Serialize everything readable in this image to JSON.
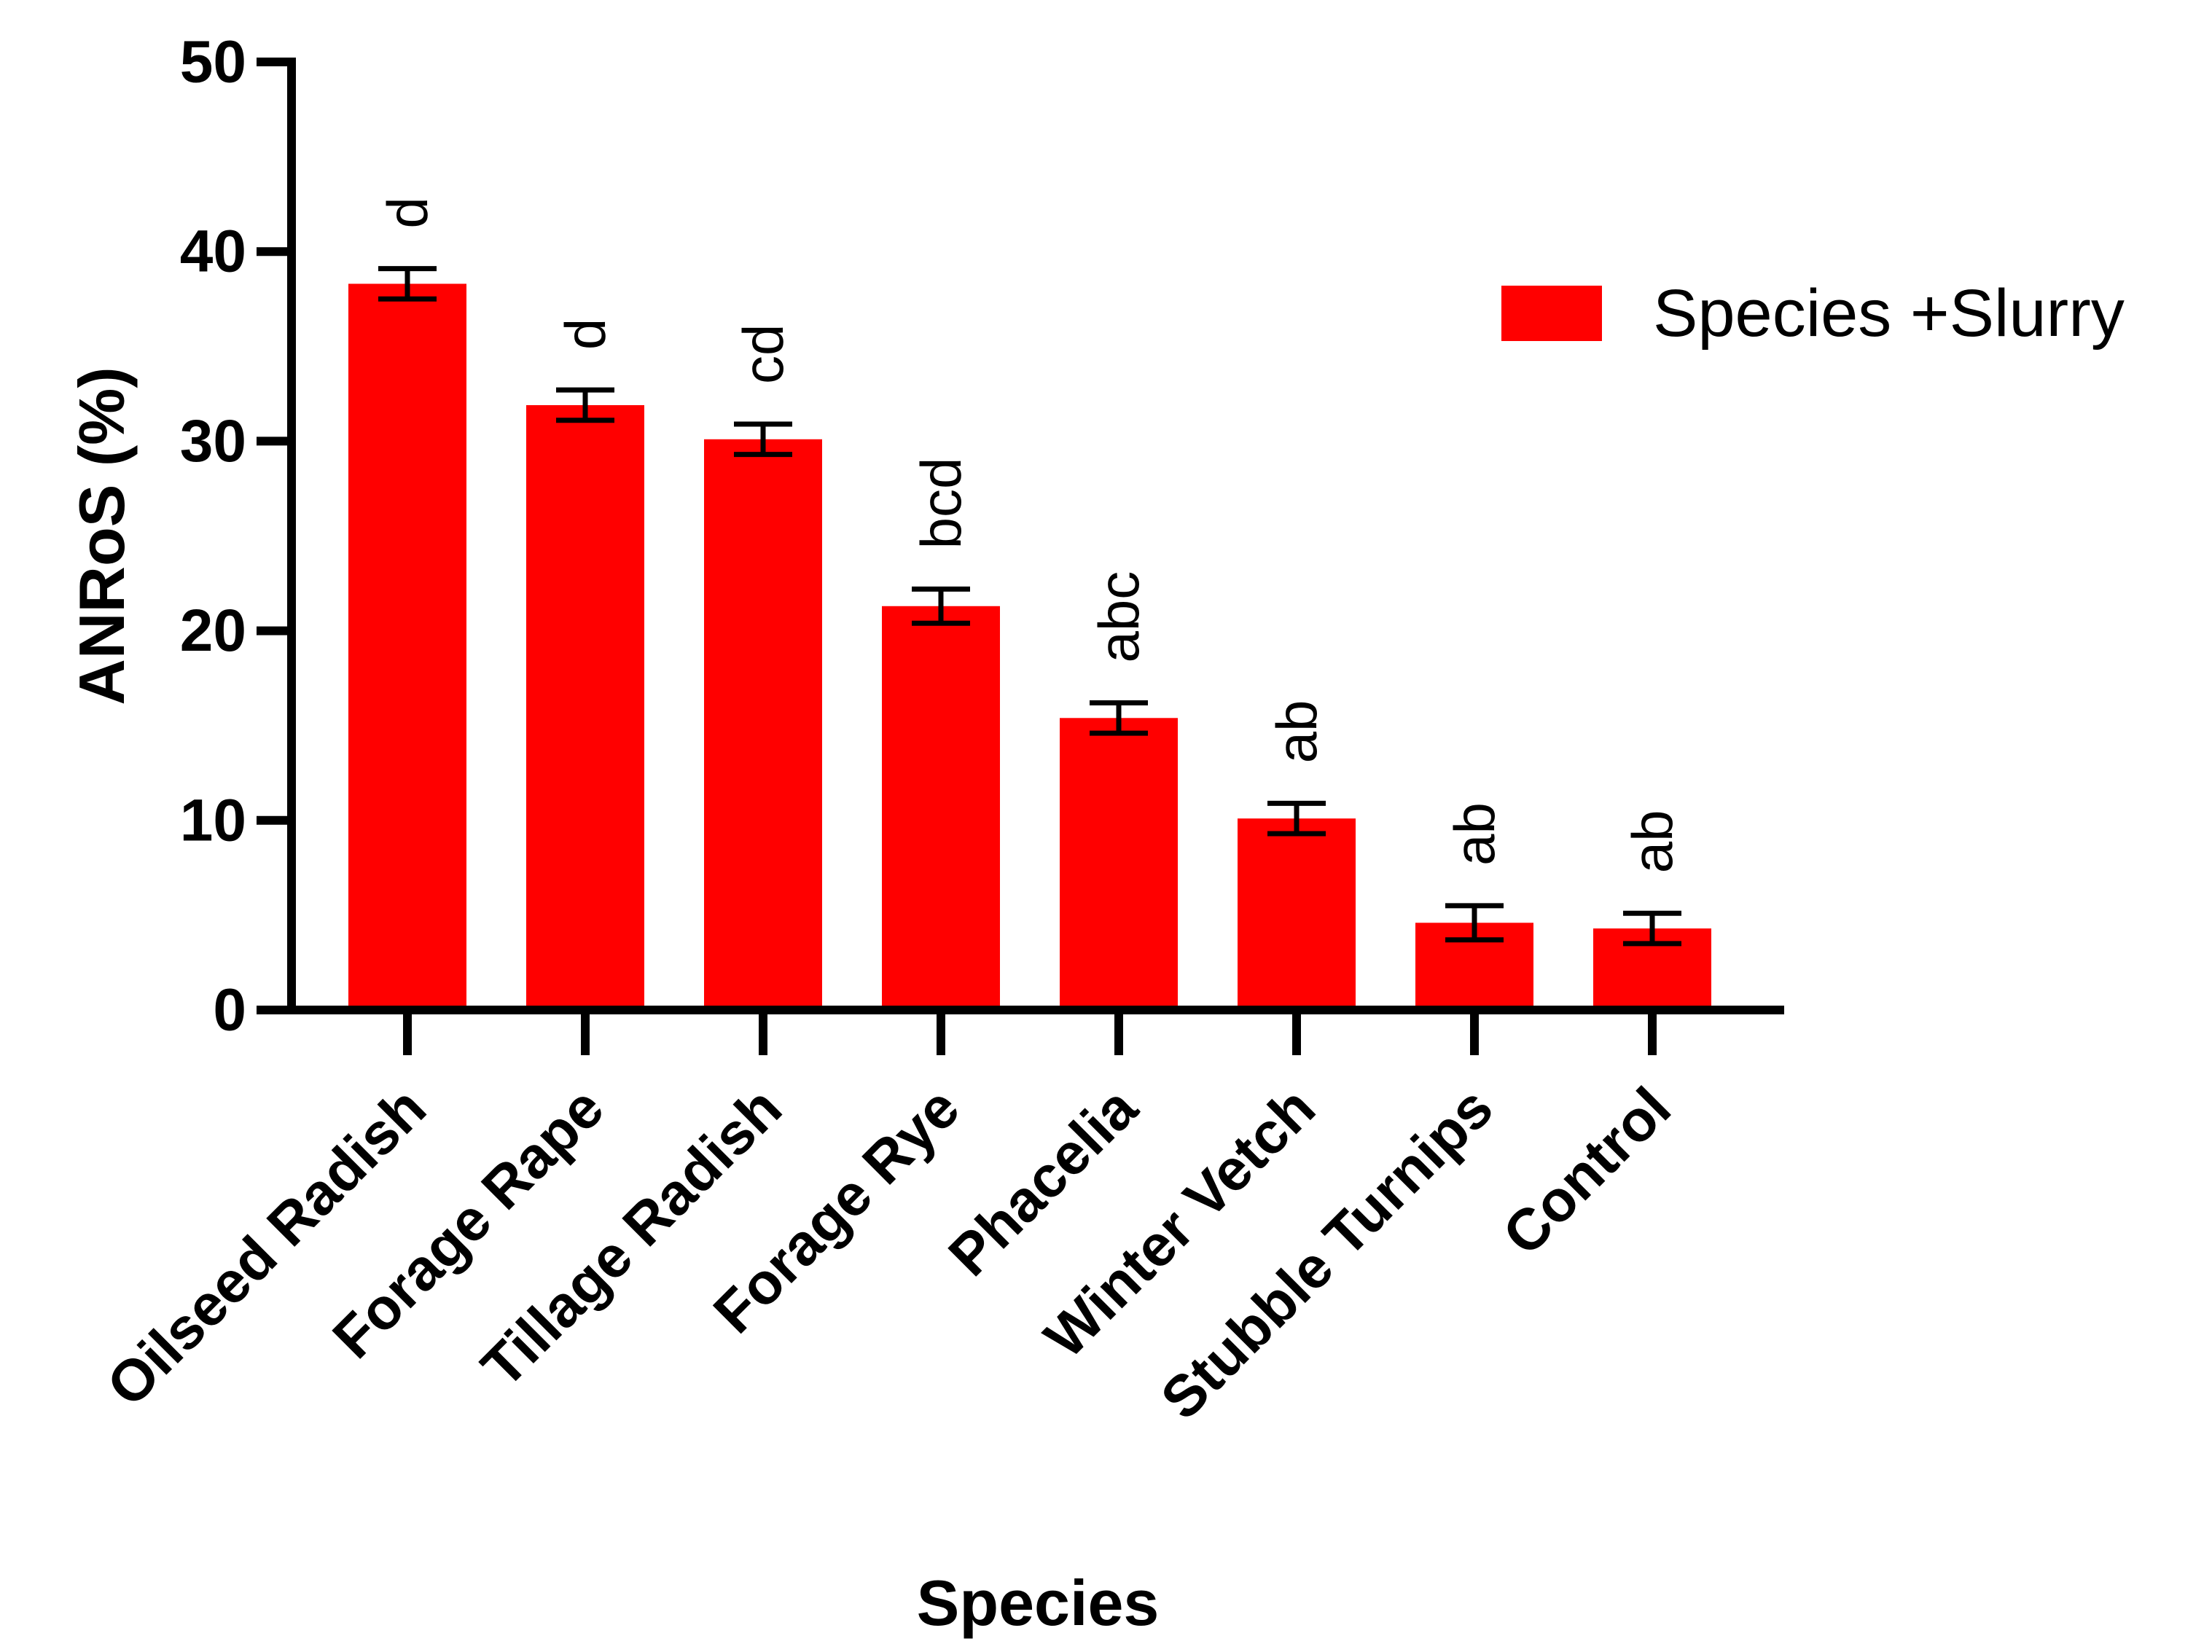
{
  "chart_data": {
    "type": "bar",
    "title": "",
    "xlabel": "Species",
    "ylabel": "ANRoS (%)",
    "ylim": [
      0,
      50
    ],
    "yticks": [
      0,
      10,
      20,
      30,
      40,
      50
    ],
    "categories": [
      "Oilseed Radish",
      "Forage Rape",
      "Tillage Radish",
      "Forage Rye",
      "Phacelia",
      "Winter Vetch",
      "Stubble Turnips",
      "Control"
    ],
    "series": [
      {
        "name": "Species +Slurry",
        "color": "#ff0000",
        "values": [
          38.3,
          31.9,
          30.1,
          21.3,
          15.4,
          10.1,
          4.6,
          4.3
        ],
        "errors": [
          0.8,
          0.8,
          0.8,
          0.9,
          0.8,
          0.8,
          0.9,
          0.8
        ]
      }
    ],
    "significance_letters": [
      "d",
      "d",
      "cd",
      "bcd",
      "abc",
      "ab",
      "ab",
      "ab"
    ],
    "legend": {
      "position": "top-right",
      "entries": [
        "Species +Slurry"
      ]
    },
    "grid": false
  }
}
